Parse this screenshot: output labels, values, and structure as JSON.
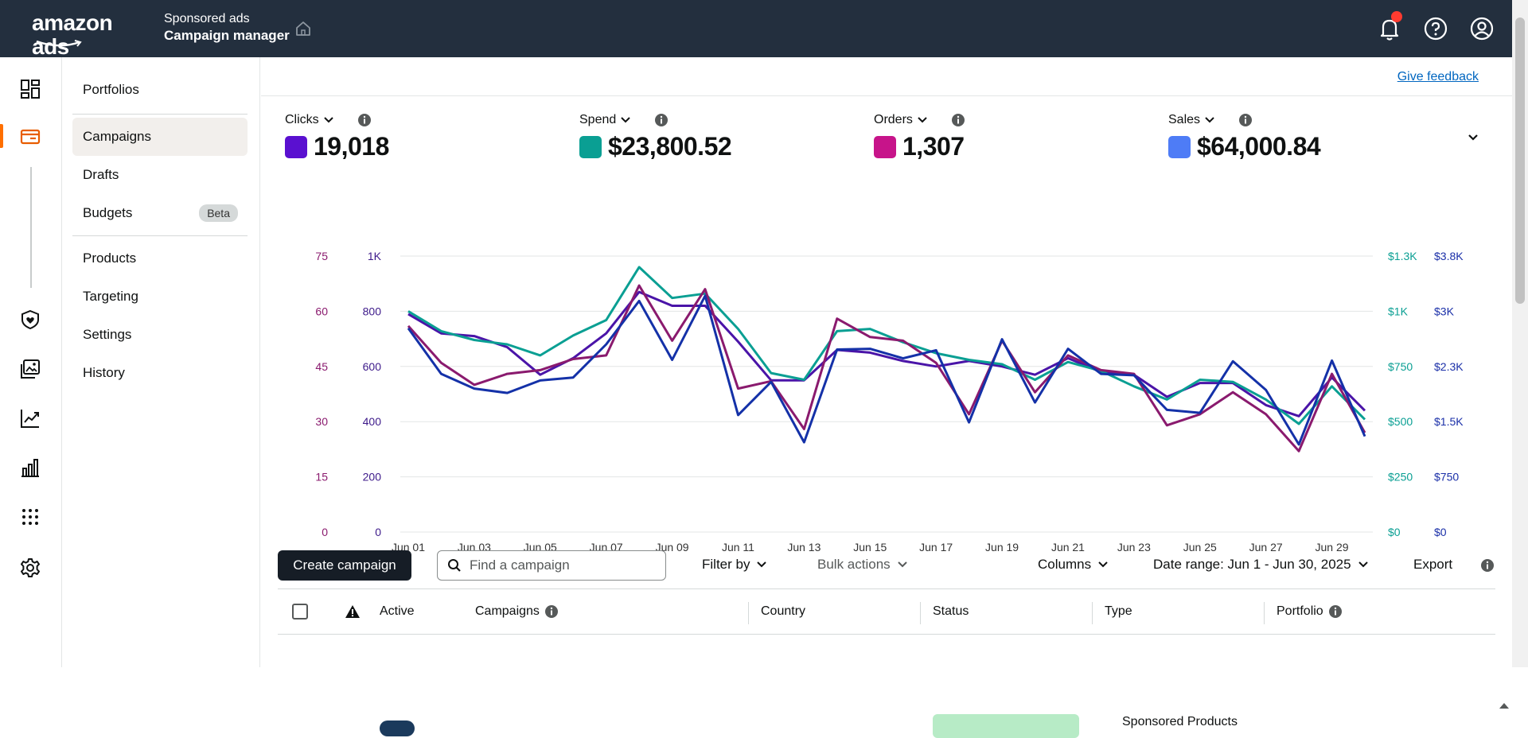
{
  "header": {
    "logo_text": "amazon ads",
    "crumb_top": "Sponsored ads",
    "crumb_bottom": "Campaign manager"
  },
  "subnav": {
    "items": [
      {
        "label": "Portfolios"
      },
      {
        "label": "Campaigns"
      },
      {
        "label": "Drafts"
      },
      {
        "label": "Budgets",
        "badge": "Beta"
      },
      {
        "label": "Products"
      },
      {
        "label": "Targeting"
      },
      {
        "label": "Settings"
      },
      {
        "label": "History"
      }
    ]
  },
  "main": {
    "feedback_label": "Give feedback",
    "metrics": [
      {
        "label": "Clicks",
        "value": "19,018",
        "color": "#5a10d0"
      },
      {
        "label": "Spend",
        "value": "$23,800.52",
        "color": "#0a9f93"
      },
      {
        "label": "Orders",
        "value": "1,307",
        "color": "#c7148a"
      },
      {
        "label": "Sales",
        "value": "$64,000.84",
        "color": "#4e7cf6"
      }
    ]
  },
  "chart_data": {
    "type": "line",
    "x": [
      "Jun 01",
      "Jun 02",
      "Jun 03",
      "Jun 04",
      "Jun 05",
      "Jun 06",
      "Jun 07",
      "Jun 08",
      "Jun 09",
      "Jun 10",
      "Jun 11",
      "Jun 12",
      "Jun 13",
      "Jun 14",
      "Jun 15",
      "Jun 16",
      "Jun 17",
      "Jun 18",
      "Jun 19",
      "Jun 20",
      "Jun 21",
      "Jun 22",
      "Jun 23",
      "Jun 24",
      "Jun 25",
      "Jun 26",
      "Jun 27",
      "Jun 28",
      "Jun 29",
      "Jun 30"
    ],
    "x_tick_labels": [
      "Jun 01",
      "Jun 03",
      "Jun 05",
      "Jun 07",
      "Jun 09",
      "Jun 11",
      "Jun 13",
      "Jun 15",
      "Jun 17",
      "Jun 19",
      "Jun 21",
      "Jun 23",
      "Jun 25",
      "Jun 27",
      "Jun 29"
    ],
    "axes": {
      "orders": {
        "ticks": [
          "0",
          "15",
          "30",
          "45",
          "60",
          "75"
        ],
        "max": 75,
        "color": "#8a1a6e"
      },
      "clicks": {
        "ticks": [
          "0",
          "200",
          "400",
          "600",
          "800",
          "1K"
        ],
        "max": 1000,
        "color": "#3d1a8a"
      },
      "spend": {
        "ticks": [
          "$0",
          "$250",
          "$500",
          "$750",
          "$1K",
          "$1.3K"
        ],
        "max": 1250,
        "color": "#0a9f93"
      },
      "sales": {
        "ticks": [
          "$0",
          "$750",
          "$1.5K",
          "$2.3K",
          "$3K",
          "$3.8K"
        ],
        "max": 3750,
        "color": "#1a2fa8"
      }
    },
    "series": [
      {
        "axis": "clicks",
        "color": "#4a14a8",
        "values": [
          790,
          720,
          710,
          670,
          570,
          630,
          720,
          870,
          820,
          820,
          690,
          550,
          550,
          660,
          650,
          620,
          600,
          620,
          600,
          570,
          630,
          580,
          570,
          490,
          540,
          540,
          460,
          420,
          560,
          440
        ]
      },
      {
        "axis": "spend",
        "color": "#0a9f93",
        "values": [
          1000,
          910,
          870,
          850,
          800,
          890,
          960,
          1200,
          1060,
          1080,
          920,
          720,
          690,
          910,
          920,
          860,
          810,
          780,
          760,
          690,
          770,
          730,
          660,
          600,
          690,
          680,
          600,
          490,
          660,
          510
        ]
      },
      {
        "axis": "orders",
        "color": "#8a1a6e",
        "values": [
          56,
          46,
          40,
          43,
          44,
          47,
          48,
          67,
          52,
          66,
          39,
          41,
          28,
          58,
          53,
          52,
          46,
          32,
          52,
          38,
          48,
          44,
          43,
          29,
          32,
          38,
          32,
          22,
          43,
          27
        ]
      },
      {
        "axis": "sales",
        "color": "#1431a8",
        "values": [
          2770,
          2150,
          1950,
          1890,
          2060,
          2100,
          2550,
          3140,
          2340,
          3210,
          1590,
          2040,
          1220,
          2480,
          2490,
          2360,
          2470,
          1490,
          2620,
          1760,
          2490,
          2150,
          2130,
          1660,
          1620,
          2320,
          1930,
          1190,
          2330,
          1300
        ]
      }
    ]
  },
  "toolbar": {
    "create_label": "Create campaign",
    "search_placeholder": "Find a campaign",
    "filter_label": "Filter by",
    "bulk_label": "Bulk actions",
    "columns_label": "Columns",
    "date_range_label": "Date range: Jun 1 - Jun 30, 2025",
    "export_label": "Export"
  },
  "table": {
    "headers": {
      "active": "Active",
      "campaigns": "Campaigns",
      "country": "Country",
      "status": "Status",
      "type": "Type",
      "portfolio": "Portfolio"
    },
    "row_peek_type": "Sponsored Products"
  }
}
